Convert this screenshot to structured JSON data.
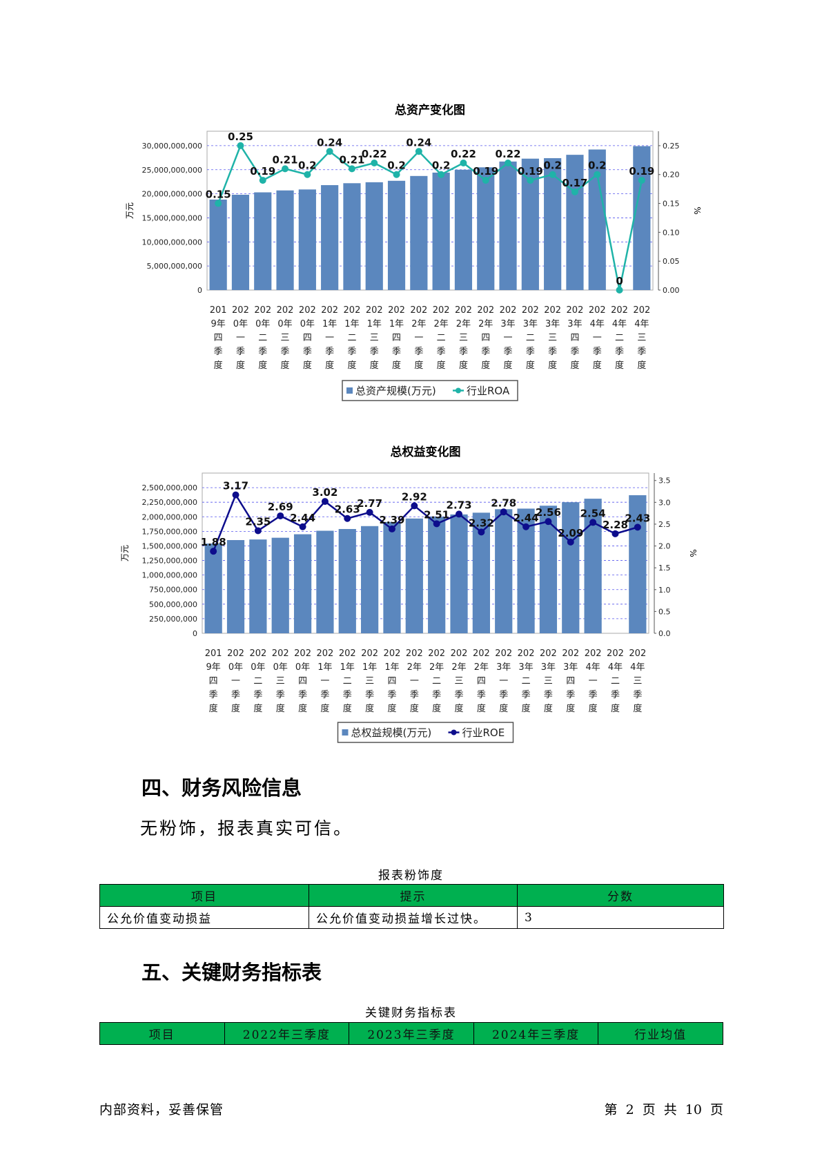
{
  "chart_data": [
    {
      "type": "bar+line",
      "title": "总资产变化图",
      "ylabel_left": "万元",
      "ylabel_right": "%",
      "categories": [
        [
          "201",
          "9年",
          "四",
          "季",
          "度"
        ],
        [
          "202",
          "0年",
          "一",
          "季",
          "度"
        ],
        [
          "202",
          "0年",
          "二",
          "季",
          "度"
        ],
        [
          "202",
          "0年",
          "三",
          "季",
          "度"
        ],
        [
          "202",
          "0年",
          "四",
          "季",
          "度"
        ],
        [
          "202",
          "1年",
          "一",
          "季",
          "度"
        ],
        [
          "202",
          "1年",
          "二",
          "季",
          "度"
        ],
        [
          "202",
          "1年",
          "三",
          "季",
          "度"
        ],
        [
          "202",
          "1年",
          "四",
          "季",
          "度"
        ],
        [
          "202",
          "2年",
          "一",
          "季",
          "度"
        ],
        [
          "202",
          "2年",
          "二",
          "季",
          "度"
        ],
        [
          "202",
          "2年",
          "三",
          "季",
          "度"
        ],
        [
          "202",
          "2年",
          "四",
          "季",
          "度"
        ],
        [
          "202",
          "3年",
          "一",
          "季",
          "度"
        ],
        [
          "202",
          "3年",
          "二",
          "季",
          "度"
        ],
        [
          "202",
          "3年",
          "三",
          "季",
          "度"
        ],
        [
          "202",
          "3年",
          "四",
          "季",
          "度"
        ],
        [
          "202",
          "4年",
          "一",
          "季",
          "度"
        ],
        [
          "202",
          "4年",
          "二",
          "季",
          "度"
        ],
        [
          "202",
          "4年",
          "三",
          "季",
          "度"
        ]
      ],
      "y_left_ticks": [
        "0",
        "5,000,000,000",
        "10,000,000,000",
        "15,000,000,000",
        "20,000,000,000",
        "25,000,000,000",
        "30,000,000,000"
      ],
      "y_left_max": 33000000000,
      "y_right_ticks": [
        "0.00",
        "0.05",
        "0.10",
        "0.15",
        "0.20",
        "0.25"
      ],
      "y_right_max": 0.275,
      "bar_series": {
        "name": "总资产规模(万元)",
        "color": "#5b87be",
        "values": [
          18800000000,
          19800000000,
          20300000000,
          20700000000,
          20900000000,
          21800000000,
          22200000000,
          22400000000,
          22700000000,
          23700000000,
          24400000000,
          25000000000,
          25500000000,
          26700000000,
          27300000000,
          27400000000,
          28100000000,
          29200000000,
          null,
          29900000000
        ]
      },
      "line_series": {
        "name": "行业ROA",
        "color": "#1fb3a8",
        "values": [
          0.15,
          0.25,
          0.19,
          0.21,
          0.2,
          0.24,
          0.21,
          0.22,
          0.2,
          0.24,
          0.2,
          0.22,
          0.19,
          0.22,
          0.19,
          0.2,
          0.17,
          0.2,
          0,
          0.19
        ],
        "labels": [
          "0.15",
          "0.25",
          "0.19",
          "0.21",
          "0.2",
          "0.24",
          "0.21",
          "0.22",
          "0.2",
          "0.24",
          "0.2",
          "0.22",
          "0.19",
          "0.22",
          "0.19",
          "0.2",
          "0.17",
          "0.2",
          "0",
          "0.19"
        ]
      },
      "grid": true,
      "legend_placement": "bottom"
    },
    {
      "type": "bar+line",
      "title": "总权益变化图",
      "ylabel_left": "万元",
      "ylabel_right": "%",
      "categories": [
        [
          "201",
          "9年",
          "四",
          "季",
          "度"
        ],
        [
          "202",
          "0年",
          "一",
          "季",
          "度"
        ],
        [
          "202",
          "0年",
          "二",
          "季",
          "度"
        ],
        [
          "202",
          "0年",
          "三",
          "季",
          "度"
        ],
        [
          "202",
          "0年",
          "四",
          "季",
          "度"
        ],
        [
          "202",
          "1年",
          "一",
          "季",
          "度"
        ],
        [
          "202",
          "1年",
          "二",
          "季",
          "度"
        ],
        [
          "202",
          "1年",
          "三",
          "季",
          "度"
        ],
        [
          "202",
          "1年",
          "四",
          "季",
          "度"
        ],
        [
          "202",
          "2年",
          "一",
          "季",
          "度"
        ],
        [
          "202",
          "2年",
          "二",
          "季",
          "度"
        ],
        [
          "202",
          "2年",
          "三",
          "季",
          "度"
        ],
        [
          "202",
          "2年",
          "四",
          "季",
          "度"
        ],
        [
          "202",
          "3年",
          "一",
          "季",
          "度"
        ],
        [
          "202",
          "3年",
          "二",
          "季",
          "度"
        ],
        [
          "202",
          "3年",
          "三",
          "季",
          "度"
        ],
        [
          "202",
          "3年",
          "四",
          "季",
          "度"
        ],
        [
          "202",
          "4年",
          "一",
          "季",
          "度"
        ],
        [
          "202",
          "4年",
          "二",
          "季",
          "度"
        ],
        [
          "202",
          "4年",
          "三",
          "季",
          "度"
        ]
      ],
      "y_left_ticks": [
        "0",
        "250,000,000",
        "500,000,000",
        "750,000,000",
        "1,000,000,000",
        "1,250,000,000",
        "1,500,000,000",
        "1,750,000,000",
        "2,000,000,000",
        "2,250,000,000",
        "2,500,000,000"
      ],
      "y_left_max": 2750000000,
      "y_right_ticks": [
        "0.0",
        "0.5",
        "1.0",
        "1.5",
        "2.0",
        "2.5",
        "3.0",
        "3.5"
      ],
      "y_right_max": 3.67,
      "bar_series": {
        "name": "总权益规模(万元)",
        "color": "#5b87be",
        "values": [
          1540000000,
          1600000000,
          1610000000,
          1640000000,
          1700000000,
          1760000000,
          1790000000,
          1840000000,
          1910000000,
          1970000000,
          2000000000,
          2040000000,
          2070000000,
          2130000000,
          2140000000,
          2190000000,
          2250000000,
          2310000000,
          null,
          2370000000
        ]
      },
      "line_series": {
        "name": "行业ROE",
        "color": "#0d0d8c",
        "values": [
          1.88,
          3.17,
          2.35,
          2.69,
          2.44,
          3.02,
          2.63,
          2.77,
          2.39,
          2.92,
          2.51,
          2.73,
          2.32,
          2.78,
          2.44,
          2.56,
          2.09,
          2.54,
          2.28,
          2.43
        ],
        "labels": [
          "1.88",
          "3.17",
          "2.35",
          "2.69",
          "2.44",
          "3.02",
          "2.63",
          "2.77",
          "2.39",
          "2.92",
          "2.51",
          "2.73",
          "2.32",
          "2.78",
          "2.44",
          "2.56",
          "2.09",
          "2.54",
          "2.28",
          "2.43"
        ]
      },
      "grid": true,
      "legend_placement": "bottom"
    }
  ],
  "section4": {
    "heading": "四、财务风险信息",
    "text": "无粉饰，报表真实可信。",
    "table_caption": "报表粉饰度",
    "headers": [
      "项目",
      "提示",
      "分数"
    ],
    "rows": [
      [
        "公允价值变动损益",
        "公允价值变动损益增长过快。",
        "3"
      ]
    ]
  },
  "section5": {
    "heading": "五、关键财务指标表",
    "table_caption": "关键财务指标表",
    "headers": [
      "项目",
      "2022年三季度",
      "2023年三季度",
      "2024年三季度",
      "行业均值"
    ]
  },
  "footer": {
    "left": "内部资料，妥善保管",
    "right": "第 2 页  共 10 页"
  },
  "colors": {
    "table_header_bg": "#00b050",
    "bar": "#5b87be",
    "roa_line": "#1fb3a8",
    "roe_line": "#0d0d8c",
    "grid": "#4a4ae0"
  }
}
